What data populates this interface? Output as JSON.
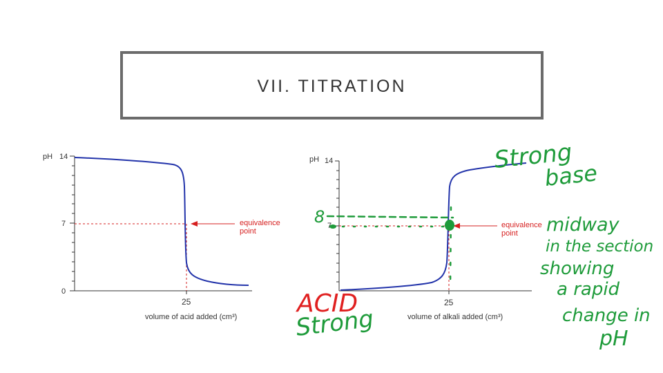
{
  "slide": {
    "title": "VII. TITRATION"
  },
  "left_chart": {
    "ylabel": "pH",
    "y_ticks": [
      "14",
      "7",
      "0"
    ],
    "x_tick": "25",
    "xlabel": "volume of acid added (cm³)",
    "annotation": [
      "equivalence",
      "point"
    ],
    "curve_color": "#2233aa",
    "guide_color": "#d62020"
  },
  "right_chart": {
    "ylabel": "pH",
    "y_ticks": [
      "14",
      "7"
    ],
    "x_tick": "25",
    "xlabel": "volume of alkali added (cm³)",
    "annotation": [
      "equivalence",
      "point"
    ],
    "curve_color": "#2233aa",
    "guide_color": "#d62020"
  },
  "handwriting": {
    "strong_base": [
      "Strong",
      "base"
    ],
    "acid_strong": [
      "ACID",
      "Strong"
    ],
    "eight": "8",
    "midway_note": [
      "midway",
      "in the section",
      "showing",
      "a rapid",
      "change in",
      "pH"
    ],
    "green": "#1e9b3a",
    "red": "#e02020"
  }
}
